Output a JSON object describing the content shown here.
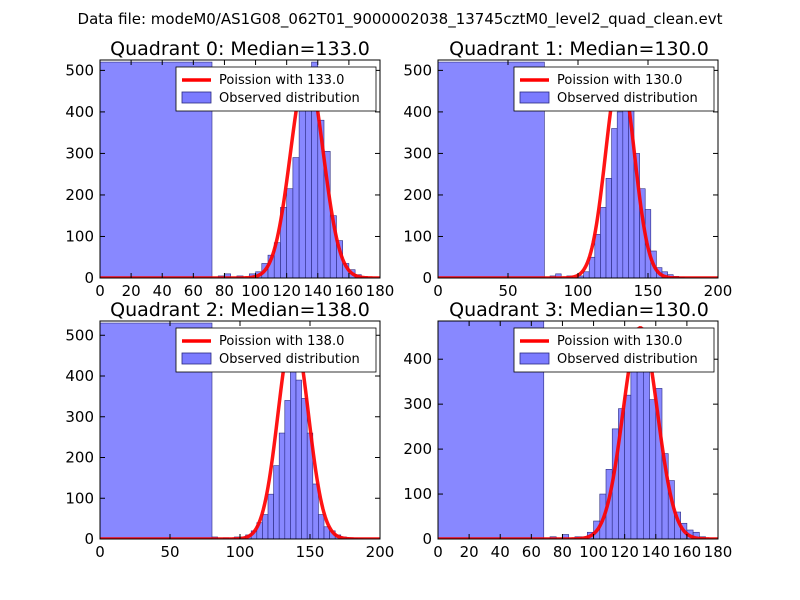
{
  "suptitle": "Data file: modeM0/AS1G08_062T01_9000002038_13745cztM0_level2_quad_clean.evt",
  "colors": {
    "bar_fill": "#7b7bff",
    "bar_edge": "#2a2a80",
    "curve": "#ff0000",
    "axis": "#000000",
    "background": "#ffffff"
  },
  "chart_data": [
    {
      "type": "bar",
      "title": "Quadrant 0: Median=133.0",
      "legend": {
        "curve_label": "Poission with 133.0",
        "bars_label": "Observed distribution",
        "position": "upper-right"
      },
      "xlim": [
        0,
        180
      ],
      "ylim": [
        0,
        525
      ],
      "xticks": [
        0,
        20,
        40,
        60,
        80,
        100,
        120,
        140,
        160,
        180
      ],
      "yticks": [
        0,
        100,
        200,
        300,
        400,
        500
      ],
      "bin_width": 4,
      "bin_edges": [
        0,
        72,
        76,
        80,
        84,
        88,
        92,
        96,
        100,
        104,
        108,
        112,
        116,
        120,
        124,
        128,
        132,
        136,
        140,
        144,
        148,
        152,
        156,
        160,
        164,
        168,
        172
      ],
      "values": [
        520,
        0,
        5,
        10,
        0,
        5,
        0,
        10,
        15,
        35,
        55,
        85,
        170,
        215,
        290,
        405,
        480,
        520,
        380,
        305,
        150,
        90,
        35,
        20,
        8,
        3
      ],
      "poisson_mean": 133.0,
      "curve_peak": 500,
      "curve_sigma": 10.5
    },
    {
      "type": "bar",
      "title": "Quadrant 1: Median=130.0",
      "legend": {
        "curve_label": "Poission with 130.0",
        "bars_label": "Observed distribution",
        "position": "upper-right"
      },
      "xlim": [
        0,
        200
      ],
      "ylim": [
        0,
        525
      ],
      "xticks": [
        0,
        50,
        100,
        150,
        200
      ],
      "yticks": [
        0,
        100,
        200,
        300,
        400,
        500
      ],
      "bin_width": 4,
      "bin_edges": [
        0,
        76,
        80,
        84,
        88,
        92,
        96,
        100,
        104,
        108,
        112,
        116,
        120,
        124,
        128,
        132,
        136,
        140,
        144,
        148,
        152,
        156,
        160,
        164,
        168,
        172,
        176,
        180
      ],
      "values": [
        520,
        0,
        5,
        10,
        0,
        5,
        0,
        5,
        15,
        50,
        105,
        170,
        240,
        360,
        400,
        420,
        480,
        300,
        215,
        165,
        65,
        25,
        15,
        8,
        4,
        2,
        0
      ],
      "poisson_mean": 130.0,
      "curve_peak": 500,
      "curve_sigma": 10.2
    },
    {
      "type": "bar",
      "title": "Quadrant 2: Median=138.0",
      "legend": {
        "curve_label": "Poission with 138.0",
        "bars_label": "Observed distribution",
        "position": "upper-right"
      },
      "xlim": [
        0,
        200
      ],
      "ylim": [
        0,
        535
      ],
      "xticks": [
        0,
        50,
        100,
        150,
        200
      ],
      "yticks": [
        0,
        100,
        200,
        300,
        400,
        500
      ],
      "bin_width": 4,
      "bin_edges": [
        0,
        80,
        84,
        88,
        92,
        96,
        100,
        104,
        108,
        112,
        116,
        120,
        124,
        128,
        132,
        136,
        140,
        144,
        148,
        152,
        156,
        160,
        164,
        168,
        172,
        176,
        180,
        184,
        188
      ],
      "values": [
        530,
        5,
        0,
        3,
        0,
        5,
        5,
        10,
        20,
        40,
        60,
        110,
        180,
        260,
        340,
        470,
        390,
        345,
        260,
        135,
        60,
        30,
        20,
        10,
        5,
        3,
        2,
        1
      ],
      "poisson_mean": 138.0,
      "curve_peak": 510,
      "curve_sigma": 10.8
    },
    {
      "type": "bar",
      "title": "Quadrant 3: Median=130.0",
      "legend": {
        "curve_label": "Poission with 130.0",
        "bars_label": "Observed distribution",
        "position": "upper-right"
      },
      "xlim": [
        0,
        180
      ],
      "ylim": [
        0,
        485
      ],
      "xticks": [
        0,
        20,
        40,
        60,
        80,
        100,
        120,
        140,
        160,
        180
      ],
      "yticks": [
        0,
        100,
        200,
        300,
        400
      ],
      "bin_width": 4,
      "bin_edges": [
        0,
        68,
        72,
        76,
        80,
        84,
        88,
        92,
        96,
        100,
        104,
        108,
        112,
        116,
        120,
        124,
        128,
        132,
        136,
        140,
        144,
        148,
        152,
        156,
        160,
        164,
        168,
        172
      ],
      "values": [
        485,
        0,
        5,
        0,
        10,
        0,
        5,
        5,
        15,
        40,
        100,
        155,
        245,
        290,
        320,
        395,
        470,
        430,
        310,
        335,
        190,
        130,
        60,
        35,
        20,
        15,
        5
      ],
      "poisson_mean": 130.0,
      "curve_peak": 470,
      "curve_sigma": 11.0
    }
  ]
}
